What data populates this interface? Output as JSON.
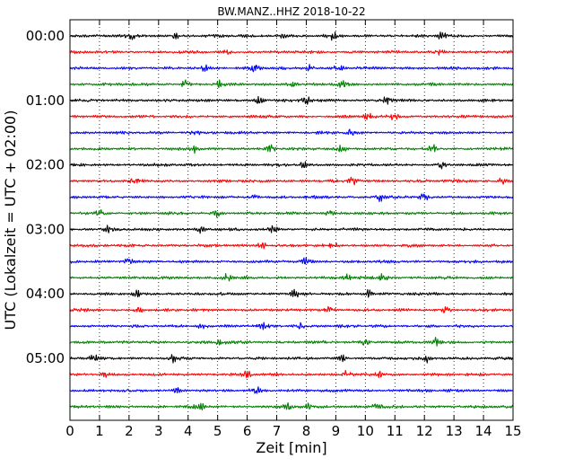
{
  "chart_data": {
    "type": "line",
    "title": "BW.MANZ..HHZ 2018-10-22",
    "xlabel": "Zeit  [min]",
    "ylabel": "UTC (Lokalzeit = UTC + 02:00)",
    "xlim": [
      0,
      15
    ],
    "x_ticks": [
      "0",
      "1",
      "2",
      "3",
      "4",
      "5",
      "6",
      "7",
      "8",
      "9",
      "10",
      "11",
      "12",
      "13",
      "14",
      "15"
    ],
    "y_ticks": [
      "00:00",
      "01:00",
      "02:00",
      "03:00",
      "04:00",
      "05:00"
    ],
    "grid": "vertical dotted at each minute",
    "trace_count": 24,
    "trace_duration_min": 15,
    "trace_colors": [
      "#000000",
      "#ff0000",
      "#0000ff",
      "#008000"
    ],
    "event_markers_min": [
      [
        2.1,
        3.6,
        7.2,
        8.9,
        12.6
      ],
      [
        5.3,
        12.5
      ],
      [
        4.6,
        6.3,
        8.1,
        9.1
      ],
      [
        3.9,
        5.1,
        7.5,
        9.2
      ],
      [
        6.4,
        8.0,
        10.7
      ],
      [
        10.1,
        11.0
      ],
      [
        4.2,
        9.5
      ],
      [
        4.2,
        6.8,
        9.2,
        12.3
      ],
      [
        7.9,
        12.6
      ],
      [
        2.2,
        9.6,
        14.6
      ],
      [
        6.2,
        10.5,
        12.0
      ],
      [
        1.0,
        5.0,
        8.8
      ],
      [
        1.3,
        4.4,
        6.9
      ],
      [
        6.5,
        8.9
      ],
      [
        2.0,
        8.0
      ],
      [
        5.3,
        9.4,
        10.6
      ],
      [
        2.3,
        7.6,
        10.1
      ],
      [
        2.3,
        8.8,
        12.7
      ],
      [
        4.5,
        6.6,
        7.8
      ],
      [
        5.1,
        10.0,
        12.4
      ],
      [
        0.8,
        3.5,
        9.2,
        12.1
      ],
      [
        1.2,
        6.0,
        9.3,
        10.5
      ],
      [
        3.6,
        6.3
      ],
      [
        4.4,
        7.4,
        8.1,
        10.4
      ]
    ]
  }
}
